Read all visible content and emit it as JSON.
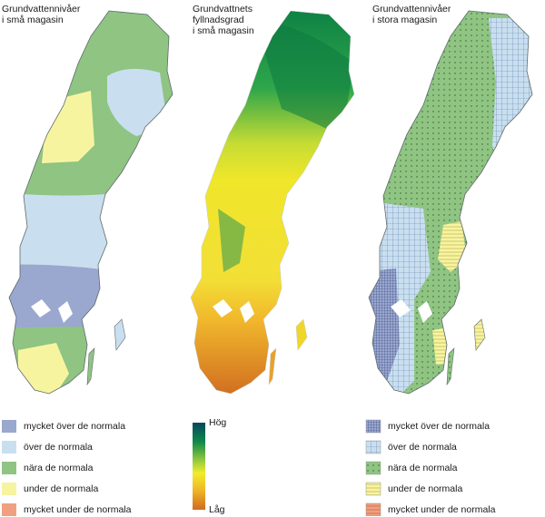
{
  "panels": [
    {
      "title": "Grundvattennivåer\ni små magasin"
    },
    {
      "title": "Grundvattnets\nfyllnadsgrad\ni små magasin"
    },
    {
      "title": "Grundvattennivåer\ni stora magasin"
    }
  ],
  "legend_levels": [
    {
      "label": "mycket över de normala",
      "color": "#9aa7cf"
    },
    {
      "label": "över de normala",
      "color": "#c9dff0"
    },
    {
      "label": "nära de normala",
      "color": "#8fc483"
    },
    {
      "label": "under de normala",
      "color": "#f7f4a0"
    },
    {
      "label": "mycket under de normala",
      "color": "#f0a080"
    }
  ],
  "legend_large": [
    {
      "label": "mycket över de normala",
      "pattern": "dense-grid-blue"
    },
    {
      "label": "över de normala",
      "pattern": "grid-light-blue"
    },
    {
      "label": "nära de normala",
      "pattern": "dots-green"
    },
    {
      "label": "under de normala",
      "pattern": "lines-yellow"
    },
    {
      "label": "mycket under de normala",
      "pattern": "lines-orange"
    }
  ],
  "gradient_legend": {
    "high": "Hög",
    "low": "Låg"
  },
  "colors": {
    "green": "#8fc483",
    "light_blue": "#c9dff0",
    "blue": "#9aa7cf",
    "yellow": "#f7f4a0",
    "orange": "#f0a080",
    "border": "#5e6a6a"
  }
}
